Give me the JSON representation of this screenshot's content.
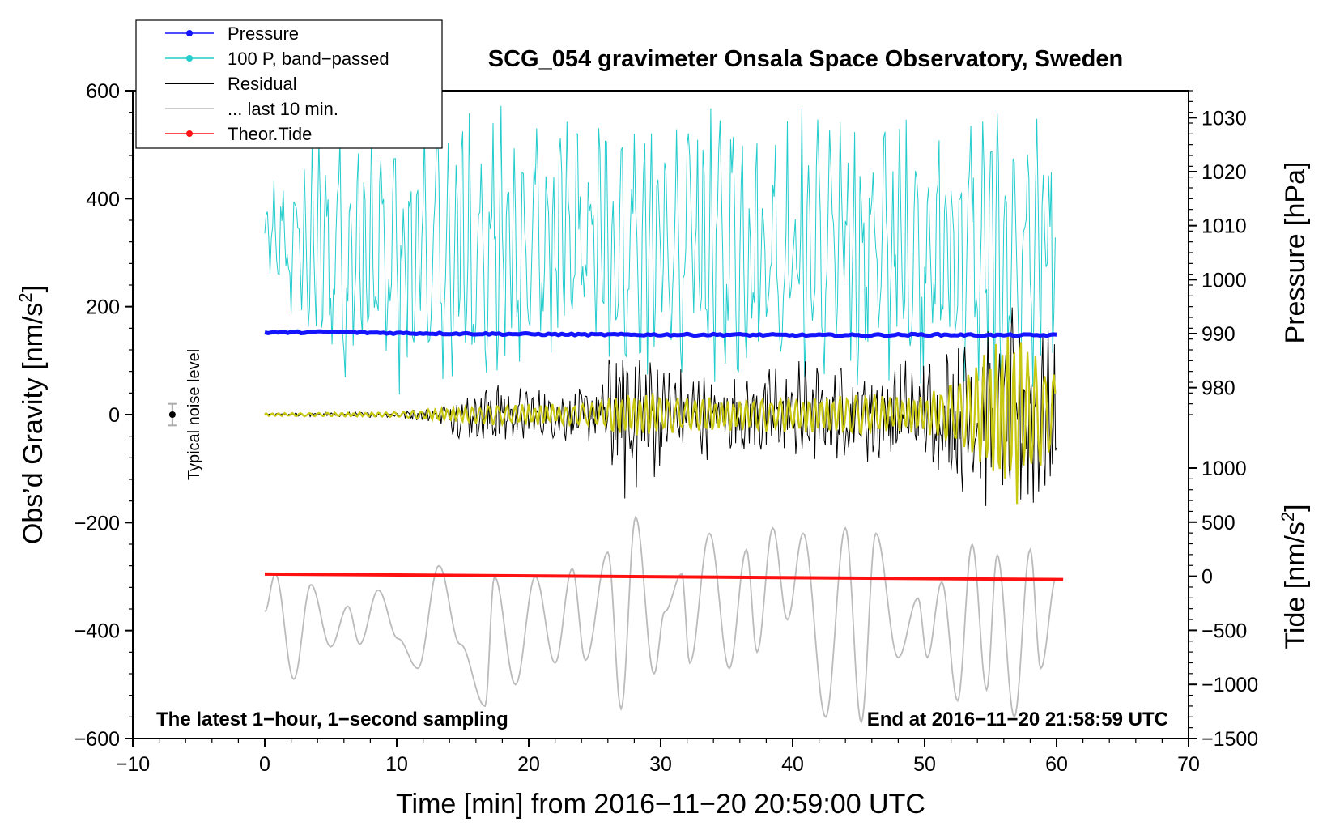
{
  "chart_data": {
    "type": "line",
    "title": "SCG_054 gravimeter Onsala Space Observatory, Sweden",
    "xlabel": "Time [min] from 2016−11−20 20:59:00 UTC",
    "ylabel": "Obs’d Gravity [nm/s²]",
    "ylabel_main": "Obs’d Gravity [nm/s",
    "ylabel_sup": "2",
    "ylabel_close": "]",
    "y2label_pressure": "Pressure [hPa]",
    "y2label_tide": "Tide [nm/s²]",
    "y2label_tide_main": "Tide [nm/s",
    "y2label_tide_sup": "2",
    "y2label_tide_close": "]",
    "xlim": [
      -10,
      70
    ],
    "ylim": [
      -600,
      600
    ],
    "pressure_axis_range": [
      975,
      1035
    ],
    "tide_axis_range": [
      -1500,
      1000
    ],
    "x_ticks": [
      -10,
      0,
      10,
      20,
      30,
      40,
      50,
      60,
      70
    ],
    "x_tick_labels": [
      "−10",
      "0",
      "10",
      "20",
      "30",
      "40",
      "50",
      "60",
      "70"
    ],
    "y_ticks": [
      -600,
      -400,
      -200,
      0,
      200,
      400,
      600
    ],
    "y_tick_labels": [
      "−600",
      "−400",
      "−200",
      "0",
      "200",
      "400",
      "600"
    ],
    "pressure_ticks": [
      980,
      990,
      1000,
      1010,
      1020,
      1030
    ],
    "pressure_tick_labels": [
      "980",
      "990",
      "1000",
      "1010",
      "1020",
      "1030"
    ],
    "tide_ticks": [
      -1500,
      -1000,
      -500,
      0,
      500,
      1000
    ],
    "tide_tick_labels": [
      "−1500",
      "−1000",
      "−500",
      "0",
      "500",
      "1000"
    ],
    "legend": [
      {
        "label": "Pressure",
        "color": "#1414ff",
        "marker": true
      },
      {
        "label": "100 P, band−passed",
        "color": "#22cccc",
        "marker": true
      },
      {
        "label": "Residual",
        "color": "#000000",
        "marker": false
      },
      {
        "label": "... last 10 min.",
        "color": "#bbbbbb",
        "marker": false
      },
      {
        "label": "Theor.Tide",
        "color": "#ff1111",
        "marker": true
      }
    ],
    "legend_position": "top-left",
    "annotations": {
      "bottom_left": "The latest 1−hour, 1−second sampling",
      "bottom_right": "End at 2016−11−20 21:58:59 UTC",
      "noise_label": "Typical noise level"
    },
    "noise_marker": {
      "x": -7,
      "y": 0,
      "error": 20
    },
    "series": [
      {
        "name": "Pressure",
        "color": "#1414ff",
        "axis": "pressure",
        "x": [
          0,
          5,
          10,
          15,
          20,
          25,
          30,
          35,
          40,
          45,
          50,
          55,
          60
        ],
        "values": [
          990.2,
          990.3,
          990.1,
          990.0,
          989.9,
          989.8,
          989.8,
          989.8,
          989.7,
          989.7,
          989.8,
          989.7,
          989.7
        ]
      },
      {
        "name": "100 P, band−passed",
        "color": "#22cccc",
        "axis": "gravity",
        "x": [
          0,
          5,
          10,
          15,
          20,
          25,
          30,
          35,
          40,
          45,
          50,
          55,
          60
        ],
        "values": [
          320,
          300,
          280,
          300,
          310,
          320,
          300,
          310,
          300,
          310,
          300,
          290,
          300
        ],
        "amplitude": [
          110,
          230,
          240,
          260,
          240,
          230,
          240,
          240,
          250,
          250,
          240,
          260,
          230
        ]
      },
      {
        "name": "Residual",
        "color": "#000000",
        "axis": "gravity",
        "x": [
          0,
          5,
          10,
          13,
          17,
          20,
          25,
          27,
          28.5,
          30,
          35,
          40,
          45,
          50,
          54,
          57,
          60
        ],
        "values": [
          0,
          0,
          0,
          0,
          0,
          0,
          0,
          0,
          0,
          0,
          0,
          0,
          0,
          0,
          0,
          0,
          0
        ],
        "amplitude": [
          4,
          5,
          6,
          20,
          90,
          60,
          60,
          200,
          200,
          110,
          90,
          120,
          100,
          130,
          190,
          240,
          160
        ]
      },
      {
        "name": "Residual filtered (yellow)",
        "color": "#c8c810",
        "axis": "gravity",
        "x": [
          0,
          5,
          10,
          13,
          17,
          20,
          25,
          27,
          30,
          35,
          40,
          45,
          50,
          53,
          55,
          57,
          60
        ],
        "values": [
          0,
          0,
          0,
          0,
          0,
          0,
          0,
          0,
          0,
          0,
          0,
          0,
          0,
          0,
          0,
          0,
          0
        ],
        "amplitude": [
          3,
          4,
          5,
          12,
          20,
          20,
          22,
          45,
          40,
          30,
          35,
          40,
          35,
          80,
          140,
          170,
          90
        ]
      },
      {
        "name": "... last 10 min.",
        "color": "#bbbbbb",
        "axis": "gravity",
        "x": [
          0,
          0.8,
          2.2,
          3.5,
          5,
          6.3,
          7.2,
          8.6,
          10.1,
          11.6,
          13.2,
          14.8,
          16.7,
          17.4,
          19,
          20.5,
          22,
          23.3,
          24.3,
          26,
          27,
          28.1,
          29.5,
          30.3,
          31.6,
          32.2,
          33.7,
          35.2,
          36.5,
          37.3,
          38.5,
          39.6,
          40.8,
          42.5,
          44,
          45.2,
          46.3,
          48,
          49.5,
          50.2,
          51.3,
          52.5,
          53.6,
          54.7,
          55.5,
          56.8,
          58,
          58.8,
          60
        ],
        "values": [
          -365,
          -295,
          -490,
          -315,
          -430,
          -355,
          -425,
          -325,
          -415,
          -470,
          -280,
          -425,
          -540,
          -300,
          -500,
          -300,
          -460,
          -285,
          -455,
          -255,
          -545,
          -190,
          -480,
          -365,
          -295,
          -460,
          -220,
          -470,
          -250,
          -440,
          -210,
          -380,
          -220,
          -560,
          -210,
          -570,
          -220,
          -450,
          -340,
          -450,
          -310,
          -530,
          -240,
          -510,
          -260,
          -560,
          -250,
          -470,
          -300
        ]
      },
      {
        "name": "Theor.Tide",
        "color": "#ff1111",
        "axis": "tide",
        "x": [
          0,
          60.5
        ],
        "values": [
          20,
          -30
        ]
      }
    ]
  }
}
